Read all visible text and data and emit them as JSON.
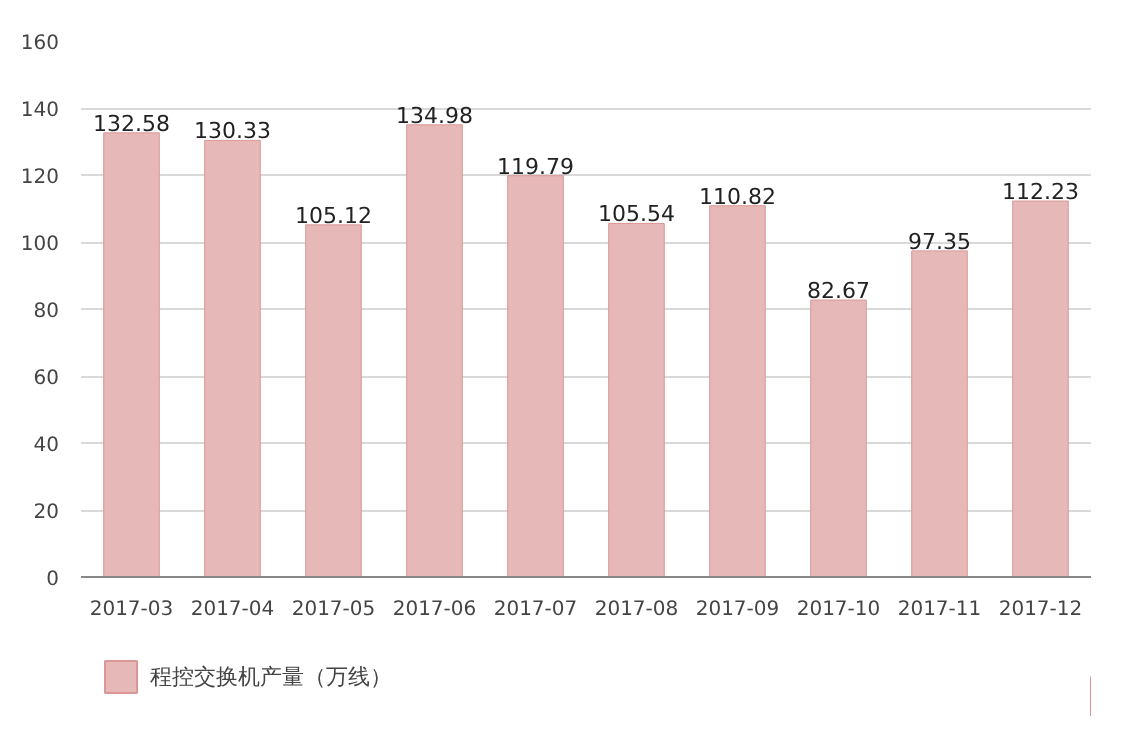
{
  "chart_data": {
    "type": "bar",
    "categories": [
      "2017-03",
      "2017-04",
      "2017-05",
      "2017-06",
      "2017-07",
      "2017-08",
      "2017-09",
      "2017-10",
      "2017-11",
      "2017-12"
    ],
    "series": [
      {
        "name": "程控交换机产量（万线）",
        "color": "#e6b8b7",
        "values": [
          132.58,
          130.33,
          105.12,
          134.98,
          119.79,
          105.54,
          110.82,
          82.67,
          97.35,
          112.23
        ]
      }
    ],
    "ylim": [
      0,
      160
    ],
    "yticks": [
      0,
      20,
      40,
      60,
      80,
      100,
      120,
      140,
      160
    ],
    "grid": "y",
    "legend": "bottom",
    "data_labels": true
  }
}
